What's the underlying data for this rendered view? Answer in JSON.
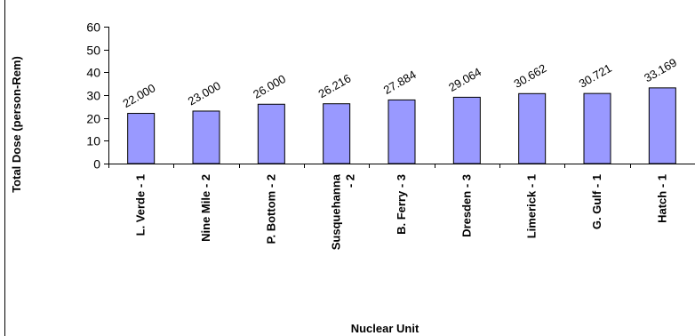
{
  "chart_data": {
    "type": "bar",
    "title": "",
    "xlabel": "Nuclear Unit",
    "ylabel": "Total Dose (person-Rem)",
    "ylim": [
      0,
      60
    ],
    "yticks": [
      0,
      10,
      20,
      30,
      40,
      50,
      60
    ],
    "grid": false,
    "legend": "none",
    "bar_color": "#9999ff",
    "bar_edge_color": "#000000",
    "categories": [
      [
        "L. Verde - 1"
      ],
      [
        "Nine Mile - 2"
      ],
      [
        "P. Bottom - 2"
      ],
      [
        "Susquehanna",
        "- 2"
      ],
      [
        "B. Ferry - 3"
      ],
      [
        "Dresden - 3"
      ],
      [
        "Limerick - 1"
      ],
      [
        "G. Gulf - 1"
      ],
      [
        "Hatch - 1"
      ]
    ],
    "values": [
      22.0,
      23.0,
      26.0,
      26.216,
      27.884,
      29.064,
      30.662,
      30.721,
      33.169
    ],
    "value_labels": [
      "22.000",
      "23.000",
      "26.000",
      "26.216",
      "27.884",
      "29.064",
      "30.662",
      "30.721",
      "33.169"
    ]
  }
}
